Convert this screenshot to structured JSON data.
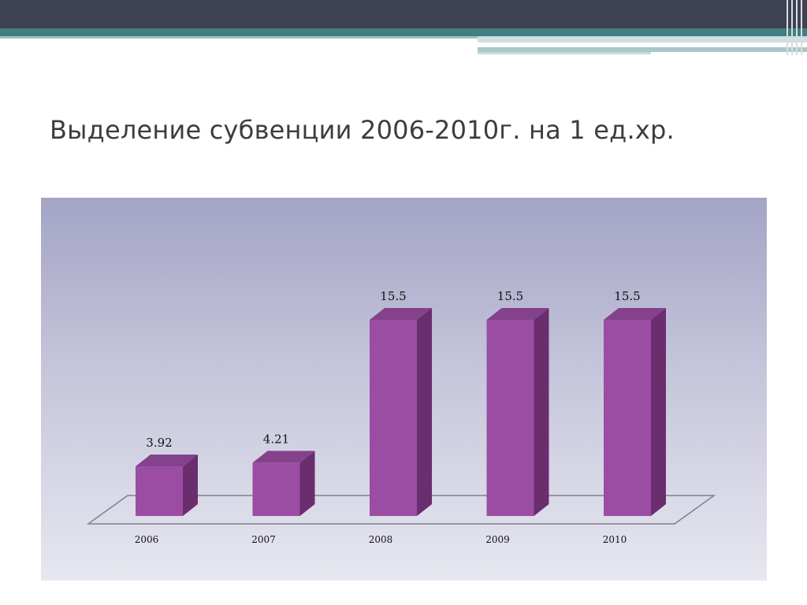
{
  "slide": {
    "title": "Выделение субвенции 2006-2010г. на 1 ед.хр."
  },
  "colors": {
    "bar_front": "#9b4da4",
    "bar_side": "#6a2e6e",
    "bar_top": "#84418c",
    "floor_line": "#7f7f8f"
  },
  "chart_data": {
    "type": "bar",
    "title": "",
    "xlabel": "",
    "ylabel": "",
    "categories": [
      "2006",
      "2007",
      "2008",
      "2009",
      "2010"
    ],
    "values": [
      3.92,
      4.21,
      15.5,
      15.5,
      15.5
    ],
    "value_labels": [
      "3.92",
      "4.21",
      "15.5",
      "15.5",
      "15.5"
    ],
    "ylim": [
      0,
      15.5
    ],
    "grid": false,
    "legend": "none",
    "style": "3d-column"
  }
}
